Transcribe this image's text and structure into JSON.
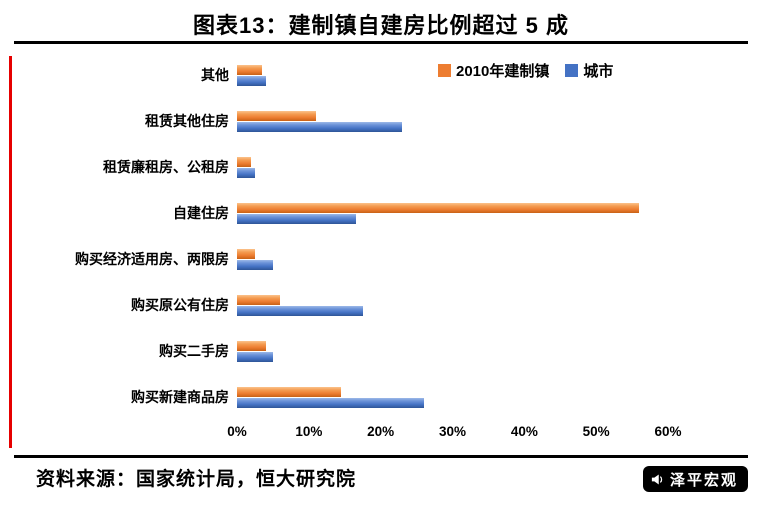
{
  "header": {
    "title": "图表13：建制镇自建房比例超过 5 成"
  },
  "chart_data": {
    "type": "bar",
    "orientation": "horizontal",
    "title": "图表13：建制镇自建房比例超过 5 成",
    "categories": [
      "其他",
      "租赁其他住房",
      "租赁廉租房、公租房",
      "自建住房",
      "购买经济适用房、两限房",
      "购买原公有住房",
      "购买二手房",
      "购买新建商品房"
    ],
    "series": [
      {
        "name": "2010年建制镇",
        "color": "#ED7D31",
        "values": [
          3.5,
          11,
          2,
          56,
          2.5,
          6,
          4,
          14.5
        ]
      },
      {
        "name": "城市",
        "color": "#4472C4",
        "values": [
          4,
          23,
          2.5,
          16.5,
          5,
          17.5,
          5,
          26
        ]
      }
    ],
    "xlim": [
      0,
      60
    ],
    "x_ticks": [
      "0%",
      "10%",
      "20%",
      "30%",
      "40%",
      "50%",
      "60%"
    ],
    "legend_position": "top-right",
    "grid": false
  },
  "footer": {
    "source": "资料来源：国家统计局，恒大研究院",
    "brand": "泽平宏观"
  }
}
